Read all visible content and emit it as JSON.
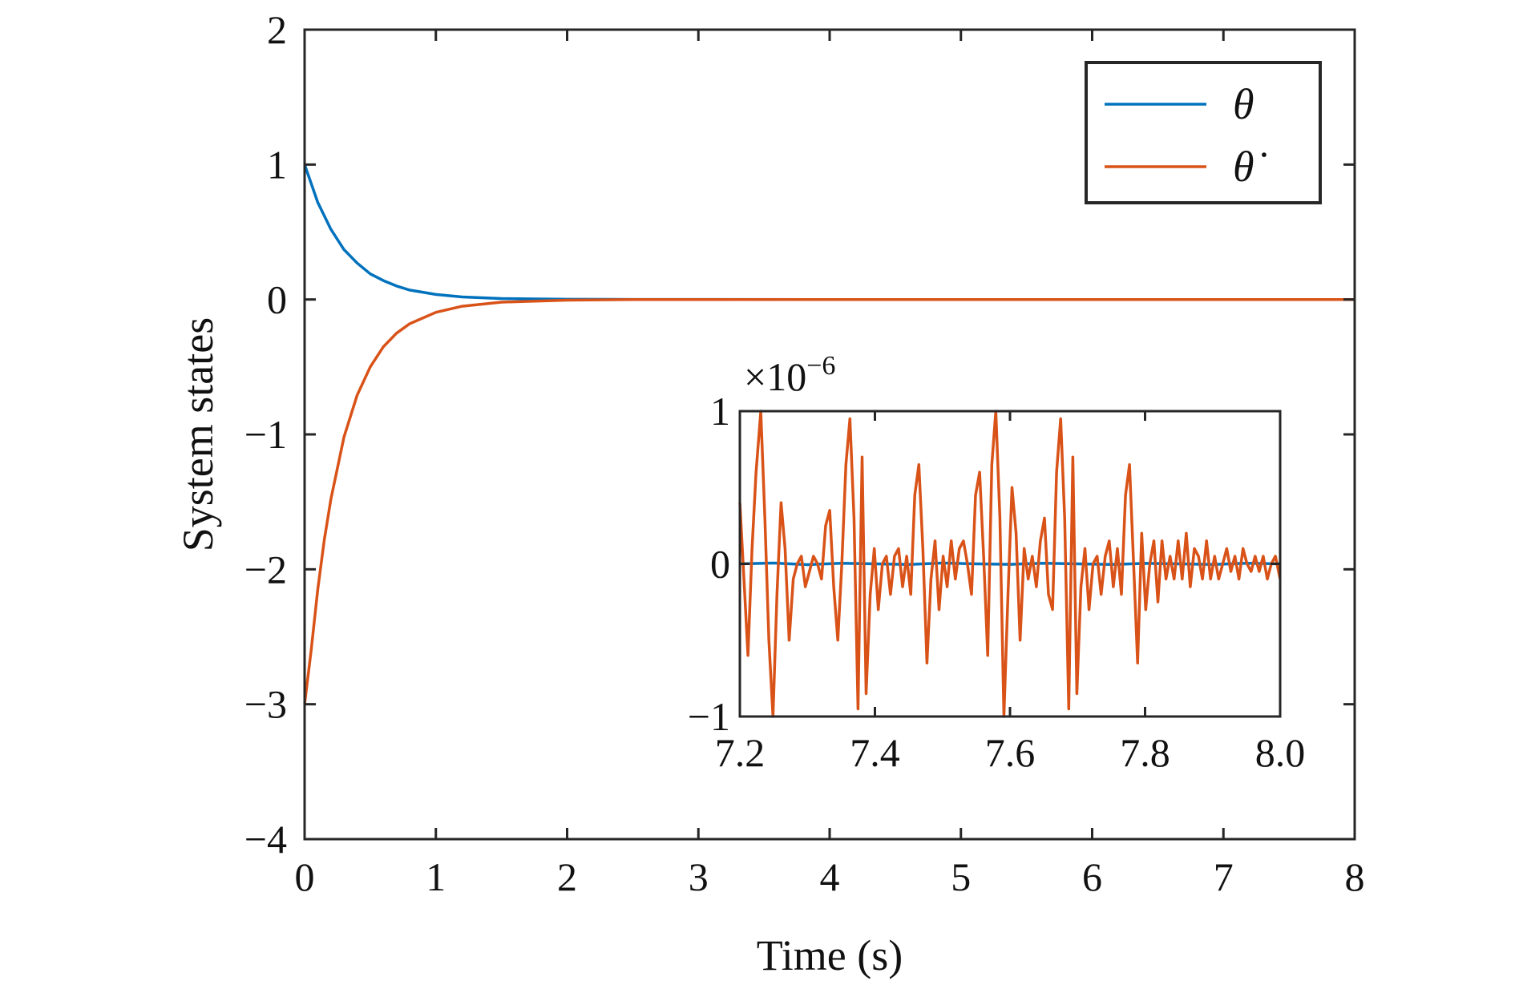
{
  "chart_data": [
    {
      "type": "line",
      "xlabel": "Time (s)",
      "ylabel": "System states",
      "xlim": [
        0,
        8
      ],
      "ylim": [
        -4,
        2
      ],
      "xticks": [
        0,
        1,
        2,
        3,
        4,
        5,
        6,
        7,
        8
      ],
      "xtick_labels": [
        "0",
        "1",
        "2",
        "3",
        "4",
        "5",
        "6",
        "7",
        "8"
      ],
      "yticks": [
        -4,
        -3,
        -2,
        -1,
        0,
        1,
        2
      ],
      "ytick_labels": [
        "−4",
        "−3",
        "−2",
        "−1",
        "0",
        "1",
        "2"
      ],
      "grid": false,
      "legend_position": "top-right",
      "series": [
        {
          "name": "θ",
          "color": "#0072BD",
          "x": [
            0,
            0.1,
            0.2,
            0.3,
            0.4,
            0.5,
            0.6,
            0.7,
            0.8,
            1.0,
            1.2,
            1.5,
            2.0,
            2.5,
            3.0,
            4.0,
            5.0,
            6.0,
            7.0,
            8.0
          ],
          "y": [
            1.0,
            0.72,
            0.52,
            0.37,
            0.27,
            0.19,
            0.14,
            0.1,
            0.07,
            0.037,
            0.019,
            0.007,
            0.0015,
            0.0003,
            0.0001,
            0,
            0,
            0,
            0,
            0
          ]
        },
        {
          "name": "θ̇",
          "color": "#D95319",
          "x": [
            0,
            0.05,
            0.1,
            0.15,
            0.2,
            0.3,
            0.4,
            0.5,
            0.6,
            0.7,
            0.8,
            1.0,
            1.2,
            1.5,
            2.0,
            2.5,
            3.0,
            4.0,
            5.0,
            6.0,
            7.0,
            8.0
          ],
          "y": [
            -3.0,
            -2.6,
            -2.15,
            -1.78,
            -1.48,
            -1.02,
            -0.71,
            -0.5,
            -0.35,
            -0.25,
            -0.18,
            -0.095,
            -0.05,
            -0.02,
            -0.005,
            -0.001,
            -0.0002,
            0,
            0,
            0,
            0,
            0
          ]
        }
      ]
    },
    {
      "type": "line",
      "inset": true,
      "xlim": [
        7.2,
        8.0
      ],
      "ylim": [
        -1,
        1
      ],
      "y_multiplier": "×10",
      "y_multiplier_exponent": "−6",
      "xticks": [
        7.2,
        7.4,
        7.6,
        7.8,
        8.0
      ],
      "xtick_labels": [
        "7.2",
        "7.4",
        "7.6",
        "7.8",
        "8.0"
      ],
      "yticks": [
        -1,
        0,
        1
      ],
      "ytick_labels": [
        "−1",
        "0",
        "1"
      ],
      "series": [
        {
          "name": "θ",
          "color": "#0072BD",
          "x": [
            7.2,
            7.25,
            7.3,
            7.35,
            7.4,
            7.45,
            7.5,
            7.55,
            7.6,
            7.65,
            7.7,
            7.75,
            7.8,
            7.85,
            7.9,
            7.95,
            8.0
          ],
          "y": [
            0,
            0.005,
            -0.005,
            0.004,
            0,
            -0.004,
            0.005,
            0,
            -0.003,
            0.004,
            0,
            -0.004,
            0.003,
            0,
            -0.004,
            0.004,
            0
          ]
        },
        {
          "name": "θ̇",
          "color": "#D95319",
          "x": [
            7.2,
            7.206,
            7.212,
            7.218,
            7.224,
            7.231,
            7.237,
            7.243,
            7.249,
            7.255,
            7.261,
            7.267,
            7.273,
            7.279,
            7.285,
            7.291,
            7.297,
            7.303,
            7.309,
            7.315,
            7.321,
            7.327,
            7.333,
            7.339,
            7.345,
            7.351,
            7.357,
            7.363,
            7.369,
            7.375,
            7.381,
            7.387,
            7.393,
            7.399,
            7.405,
            7.411,
            7.417,
            7.423,
            7.429,
            7.435,
            7.441,
            7.447,
            7.453,
            7.459,
            7.465,
            7.471,
            7.477,
            7.483,
            7.489,
            7.495,
            7.501,
            7.507,
            7.513,
            7.519,
            7.525,
            7.531,
            7.537,
            7.543,
            7.549,
            7.555,
            7.561,
            7.567,
            7.573,
            7.579,
            7.585,
            7.591,
            7.597,
            7.603,
            7.609,
            7.615,
            7.621,
            7.627,
            7.633,
            7.639,
            7.645,
            7.651,
            7.657,
            7.663,
            7.669,
            7.675,
            7.681,
            7.687,
            7.693,
            7.699,
            7.705,
            7.711,
            7.717,
            7.723,
            7.729,
            7.735,
            7.741,
            7.747,
            7.753,
            7.759,
            7.765,
            7.771,
            7.777,
            7.783,
            7.789,
            7.795,
            7.801,
            7.807,
            7.813,
            7.819,
            7.825,
            7.831,
            7.837,
            7.843,
            7.849,
            7.855,
            7.861,
            7.867,
            7.873,
            7.879,
            7.885,
            7.891,
            7.897,
            7.903,
            7.909,
            7.915,
            7.921,
            7.927,
            7.933,
            7.939,
            7.945,
            7.951,
            7.957,
            7.963,
            7.969,
            7.975,
            7.981,
            7.987,
            7.993,
            8.0
          ],
          "y": [
            0.4,
            -0.1,
            -0.6,
            0.1,
            0.6,
            1.0,
            0.3,
            -0.5,
            -1.0,
            -0.2,
            0.4,
            0.1,
            -0.5,
            -0.1,
            0.0,
            0.05,
            -0.15,
            -0.05,
            0.05,
            0.0,
            -0.1,
            0.25,
            0.35,
            -0.15,
            -0.5,
            0.0,
            0.65,
            0.95,
            0.3,
            -0.95,
            0.7,
            -0.85,
            -0.2,
            0.1,
            -0.3,
            0.0,
            0.05,
            -0.2,
            0.05,
            0.1,
            -0.15,
            0.05,
            -0.2,
            0.45,
            0.65,
            0.1,
            -0.65,
            -0.1,
            0.15,
            -0.3,
            0.05,
            -0.15,
            0.15,
            -0.1,
            0.1,
            0.15,
            0.0,
            -0.2,
            0.45,
            0.6,
            0.05,
            -0.6,
            0.65,
            1.0,
            0.3,
            -1.0,
            -0.2,
            0.5,
            0.2,
            -0.5,
            0.1,
            -0.1,
            0.05,
            -0.15,
            0.15,
            0.3,
            -0.2,
            -0.3,
            0.6,
            0.95,
            0.3,
            -0.95,
            0.7,
            -0.85,
            -0.15,
            0.1,
            -0.3,
            0.0,
            0.05,
            -0.2,
            0.05,
            0.15,
            -0.15,
            0.1,
            -0.2,
            0.45,
            0.65,
            0.0,
            -0.65,
            0.2,
            -0.3,
            0.0,
            0.15,
            -0.25,
            0.15,
            -0.1,
            0.05,
            -0.1,
            0.15,
            -0.1,
            0.2,
            -0.15,
            0.1,
            0.05,
            -0.1,
            0.15,
            -0.1,
            0.05,
            -0.1,
            0.0,
            0.1,
            -0.05,
            0.05,
            -0.1,
            0.1,
            0.0,
            -0.05,
            0.05,
            -0.05,
            0.05,
            -0.1,
            0.0,
            0.05,
            -0.1
          ]
        }
      ]
    }
  ]
}
